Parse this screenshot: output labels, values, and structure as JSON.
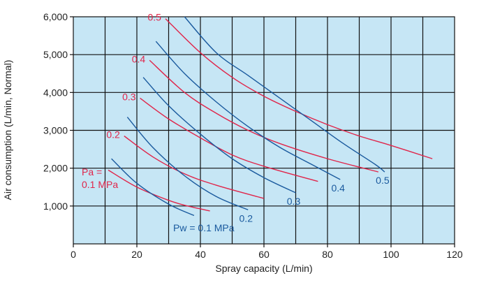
{
  "chart_data": {
    "type": "line",
    "xlabel": "Spray capacity (L/min)",
    "ylabel": "Air consumption (L/min, Normal)",
    "xlim": [
      0,
      120
    ],
    "ylim": [
      0,
      6000
    ],
    "xticks": [
      0,
      20,
      40,
      60,
      80,
      100,
      120
    ],
    "yticks": [
      1000,
      2000,
      3000,
      4000,
      5000,
      6000
    ],
    "xtick_labels": [
      "0",
      "20",
      "40",
      "60",
      "80",
      "100",
      "120"
    ],
    "ytick_labels": [
      "1,000",
      "2,000",
      "3,000",
      "4,000",
      "5,000",
      "6,000"
    ],
    "grid": true,
    "x_grid_step": 10,
    "colors": {
      "pa": "#e0254a",
      "pw": "#1a5a9e",
      "background": "#c6e6f5",
      "grid": "#111111"
    },
    "pa_series": [
      {
        "label": "0.1 MPa",
        "label_prefix": "Pa =",
        "x": [
          11,
          20,
          30,
          36,
          43
        ],
        "y": [
          1950,
          1500,
          1150,
          1000,
          870
        ]
      },
      {
        "label": "0.2",
        "x": [
          16,
          25,
          35,
          45,
          60
        ],
        "y": [
          2850,
          2300,
          1850,
          1550,
          1200
        ]
      },
      {
        "label": "0.3",
        "x": [
          21,
          30,
          40,
          50,
          60,
          77
        ],
        "y": [
          3850,
          3300,
          2800,
          2350,
          2050,
          1650
        ]
      },
      {
        "label": "0.4",
        "x": [
          24,
          35,
          45,
          55,
          65,
          80,
          96
        ],
        "y": [
          4850,
          4000,
          3450,
          3000,
          2650,
          2250,
          1900
        ]
      },
      {
        "label": "0.5",
        "x": [
          29,
          40,
          50,
          60,
          70,
          80,
          90,
          100,
          113
        ],
        "y": [
          5950,
          5050,
          4400,
          3900,
          3500,
          3150,
          2850,
          2600,
          2250
        ]
      }
    ],
    "pw_series": [
      {
        "label": "Pw = 0.1 MPa",
        "x": [
          12,
          20,
          30,
          38
        ],
        "y": [
          2250,
          1600,
          1050,
          750
        ]
      },
      {
        "label": "0.2",
        "x": [
          17,
          25,
          35,
          45,
          55
        ],
        "y": [
          3350,
          2550,
          1800,
          1250,
          900
        ]
      },
      {
        "label": "0.3",
        "x": [
          22,
          30,
          40,
          50,
          60,
          70
        ],
        "y": [
          4400,
          3650,
          2900,
          2250,
          1750,
          1350
        ]
      },
      {
        "label": "0.4",
        "x": [
          26,
          35,
          45,
          55,
          65,
          75,
          84
        ],
        "y": [
          5350,
          4500,
          3750,
          3100,
          2550,
          2100,
          1700
        ]
      },
      {
        "label": "0.5",
        "x": [
          35,
          45,
          55,
          65,
          75,
          85,
          95,
          98
        ],
        "y": [
          6000,
          5050,
          4450,
          3850,
          3250,
          2650,
          2100,
          1900
        ]
      }
    ]
  }
}
